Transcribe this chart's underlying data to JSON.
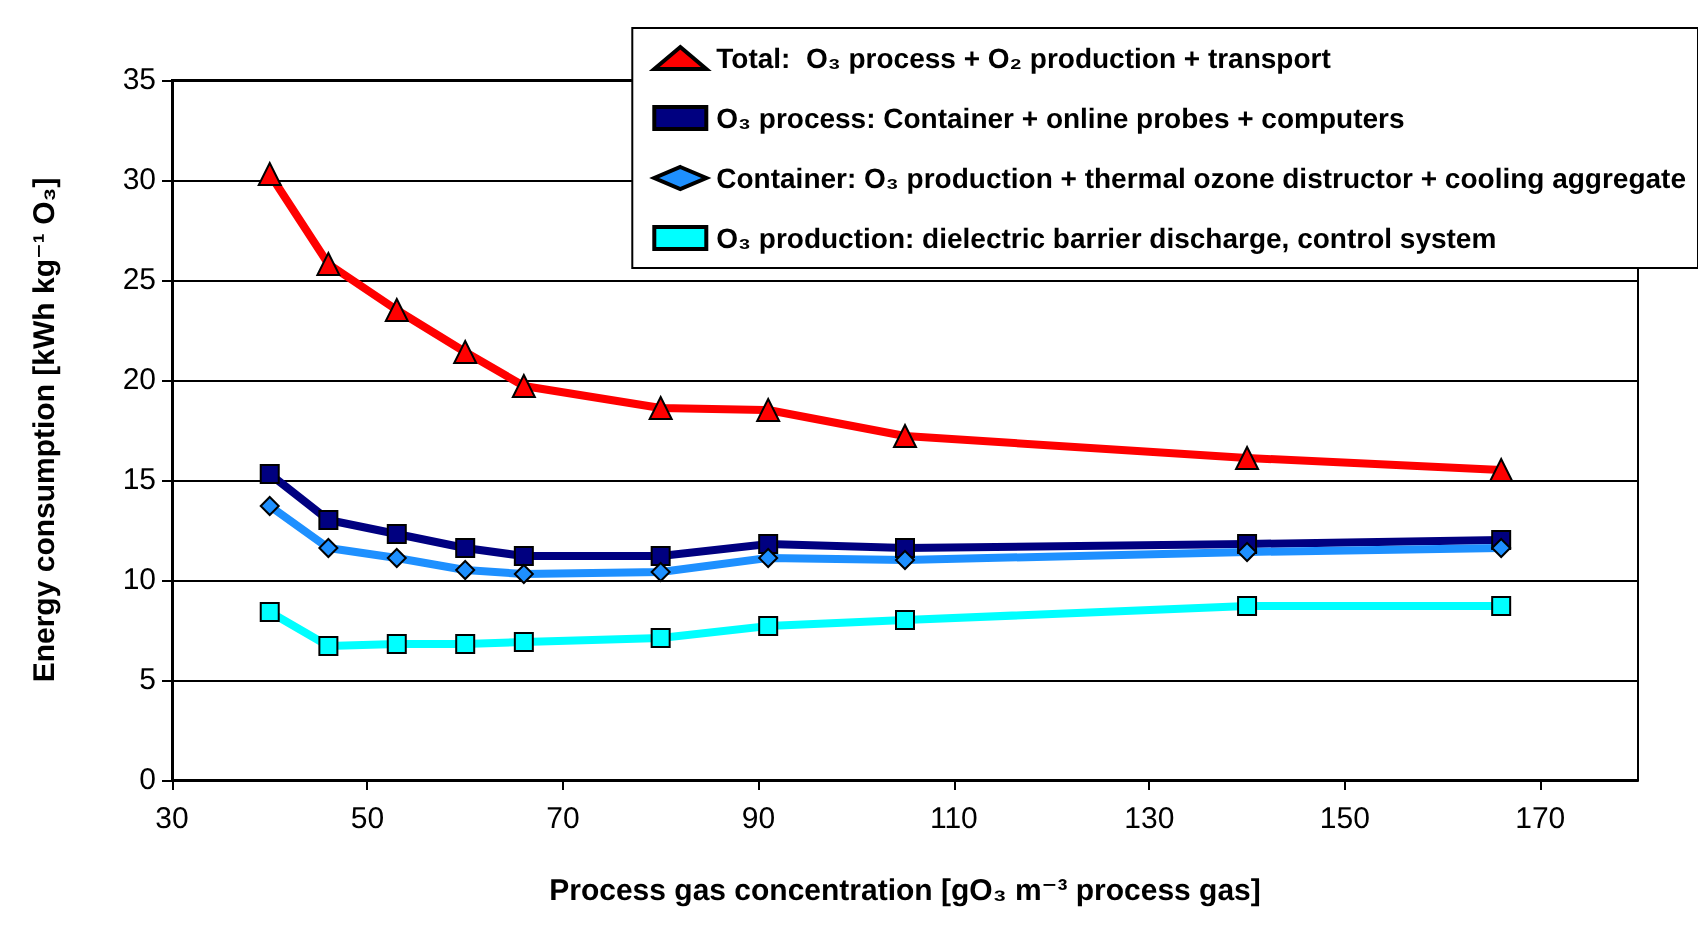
{
  "chart_data": {
    "type": "line",
    "xlabel": "Process gas concentration [gO₃ m⁻³ process gas]",
    "ylabel": "Energy consumption [kWh kg⁻¹ O₃]",
    "x": [
      40,
      46,
      53,
      60,
      66,
      80,
      91,
      105,
      140,
      166
    ],
    "series": [
      {
        "name": "Total:  O₃ process + O₂ production + transport",
        "color": "#ff0000",
        "marker": "triangle",
        "values": [
          30.3,
          25.8,
          23.5,
          21.4,
          19.7,
          18.6,
          18.5,
          17.2,
          16.1,
          15.5
        ]
      },
      {
        "name": "O₃ process: Container + online probes + computers",
        "color": "#000080",
        "marker": "square",
        "values": [
          15.3,
          13.0,
          12.3,
          11.6,
          11.2,
          11.2,
          11.8,
          11.6,
          11.8,
          12.0
        ]
      },
      {
        "name": "Container: O₃ production + thermal ozone distructor + cooling aggregate",
        "color": "#1e90ff",
        "marker": "diamond",
        "values": [
          13.7,
          11.6,
          11.1,
          10.5,
          10.3,
          10.4,
          11.1,
          11.0,
          11.4,
          11.6
        ]
      },
      {
        "name": "O₃ production: dielectric barrier discharge, control system",
        "color": "#00ffff",
        "marker": "square",
        "values": [
          8.4,
          6.7,
          6.8,
          6.8,
          6.9,
          7.1,
          7.7,
          8.0,
          8.7,
          8.7
        ]
      }
    ],
    "xlim": [
      30,
      180
    ],
    "xticks": [
      30,
      50,
      70,
      90,
      110,
      130,
      150,
      170
    ],
    "ylim": [
      0,
      35
    ],
    "yticks": [
      0,
      5,
      10,
      15,
      20,
      25,
      30,
      35
    ],
    "grid": "y",
    "legend": "top right",
    "line_style": "solid"
  }
}
